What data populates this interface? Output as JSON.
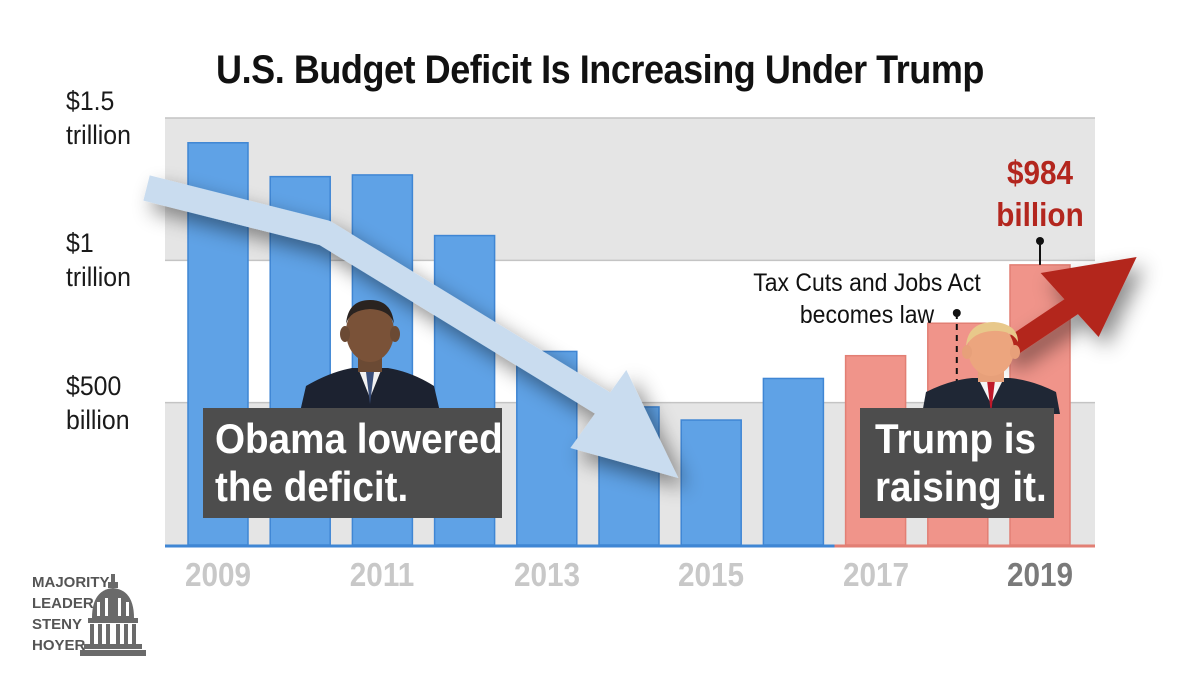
{
  "chart_data": {
    "type": "bar",
    "title": "U.S. Budget Deficit Is Increasing Under Trump",
    "xlabel": "",
    "ylabel": "",
    "x": [
      2009,
      2010,
      2011,
      2012,
      2013,
      2014,
      2015,
      2016,
      2017,
      2018,
      2019
    ],
    "values": [
      1413,
      1294,
      1300,
      1087,
      680,
      485,
      439,
      585,
      665,
      779,
      984
    ],
    "value_units": "billion USD",
    "ylim": [
      0,
      1500
    ],
    "y_ticks": [
      {
        "value": 500,
        "line1": "$500",
        "line2": "billion"
      },
      {
        "value": 1000,
        "line1": "$1",
        "line2": "trillion"
      },
      {
        "value": 1500,
        "line1": "$1.5",
        "line2": "trillion"
      }
    ],
    "x_tick_labels": [
      {
        "year": 2009,
        "label": "2009"
      },
      {
        "year": 2011,
        "label": "2011"
      },
      {
        "year": 2013,
        "label": "2013"
      },
      {
        "year": 2015,
        "label": "2015"
      },
      {
        "year": 2017,
        "label": "2017"
      },
      {
        "year": 2019,
        "label": "2019"
      }
    ],
    "grid": true,
    "colors": {
      "obama_bars": "#5fa2e6",
      "trump_bars": "#f0948a",
      "band": "#e5e5e5",
      "gridline": "#c4c4c4",
      "down_arrow": "#c9dcef",
      "up_arrow": "#b3261e"
    },
    "highlight_label": {
      "year": 2019,
      "line1": "$984",
      "line2": "billion"
    },
    "annotation": {
      "year": 2018,
      "line1": "Tax Cuts and Jobs Act",
      "line2": "becomes law"
    },
    "trend_arrows": [
      {
        "direction": "down",
        "from_year": 2008.8,
        "to_year": 2014.6
      },
      {
        "direction": "up",
        "from_year": 2018.8,
        "to_year": 2020.2
      }
    ]
  },
  "callouts": {
    "obama": {
      "line1": "Obama lowered",
      "line2": "the deficit."
    },
    "trump": {
      "line1": "Trump is",
      "line2": "raising it."
    }
  },
  "portraits": {
    "left": "obama-portrait-icon",
    "right": "trump-portrait-icon"
  },
  "logo": {
    "line1": "MAJORITY",
    "line2": "LEADER",
    "line3": "STENY",
    "line4": "HOYER",
    "icon": "capitol-dome-icon"
  }
}
